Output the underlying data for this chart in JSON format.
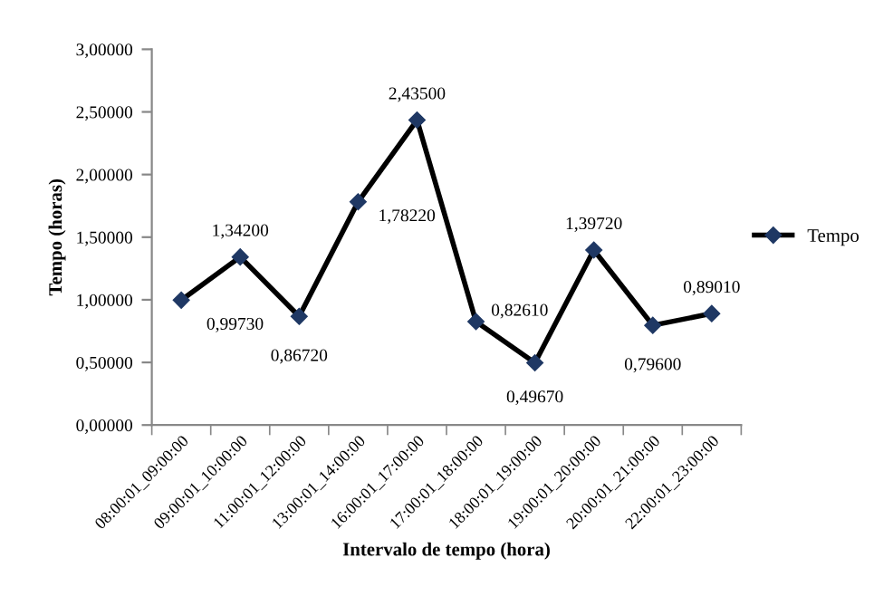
{
  "chart_data": {
    "type": "line",
    "xlabel": "Intervalo de tempo (hora)",
    "ylabel": "Tempo (horas)",
    "categories": [
      "08:00:01_09:00:00",
      "09:00:01_10:00:00",
      "11:00:01_12:00:00",
      "13:00:01_14:00:00",
      "16:00:01_17:00:00",
      "17:00:01_18:00:00",
      "18:00:01_19:00:00",
      "19:00:01_20:00:00",
      "20:00:01_21:00:00",
      "22:00:01_23:00:00"
    ],
    "series": [
      {
        "name": "Tempo",
        "color": "#000000",
        "values": [
          0.9973,
          1.342,
          0.8672,
          1.7822,
          2.435,
          0.8261,
          0.4967,
          1.3972,
          0.796,
          0.8901
        ],
        "value_labels": [
          "0,99730",
          "1,34200",
          "0,86720",
          "1,78220",
          "2,43500",
          "0,82610",
          "0,49670",
          "1,39720",
          "0,79600",
          "0,89010"
        ]
      }
    ],
    "ylim": [
      0,
      3
    ],
    "yticks": [
      {
        "value": 0,
        "label": "0,00000"
      },
      {
        "value": 0.5,
        "label": "0,50000"
      },
      {
        "value": 1,
        "label": "1,00000"
      },
      {
        "value": 1.5,
        "label": "1,50000"
      },
      {
        "value": 2,
        "label": "2,00000"
      },
      {
        "value": 2.5,
        "label": "2,50000"
      },
      {
        "value": 3,
        "label": "3,00000"
      }
    ],
    "grid": false,
    "legend": "right",
    "marker": "diamond",
    "line_style": "solid"
  }
}
